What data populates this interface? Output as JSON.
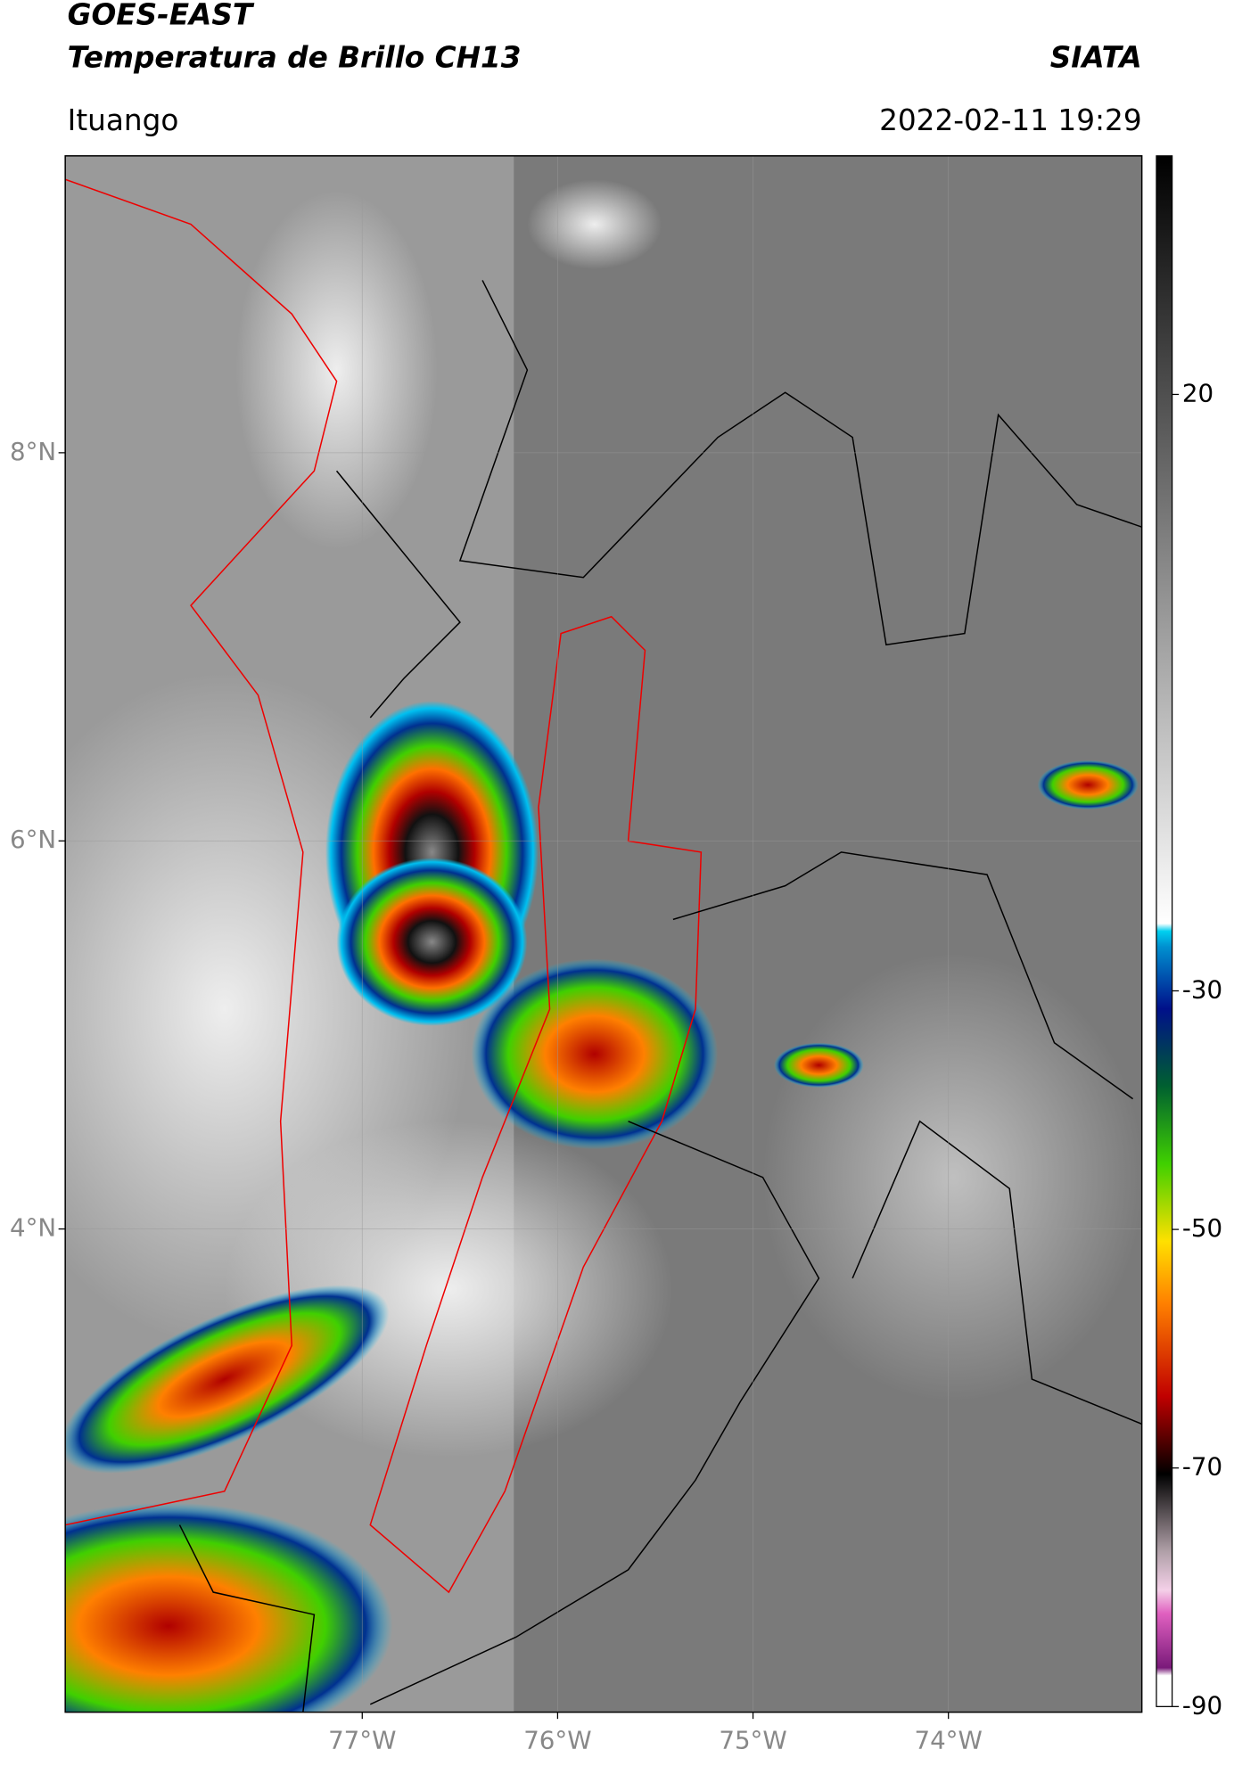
{
  "header": {
    "title_line1": "GOES-EAST",
    "title_line2": "Temperatura de Brillo CH13",
    "source": "SIATA",
    "location": "Ituango",
    "datetime": "2022-02-11 19:29"
  },
  "map": {
    "xlim": [
      -78.52,
      -73.01
    ],
    "ylim": [
      1.51,
      9.53
    ],
    "xticks": [
      {
        "value": -77,
        "label": "77°W"
      },
      {
        "value": -76,
        "label": "76°W"
      },
      {
        "value": -75,
        "label": "75°W"
      },
      {
        "value": -74,
        "label": "74°W"
      }
    ],
    "yticks": [
      {
        "value": 8,
        "label": "8°N"
      },
      {
        "value": 6,
        "label": "6°N"
      },
      {
        "value": 4,
        "label": "4°N"
      }
    ]
  },
  "colorbar": {
    "range": [
      -90,
      40
    ],
    "ticks": [
      20,
      -30,
      -50,
      -70,
      -90
    ]
  }
}
